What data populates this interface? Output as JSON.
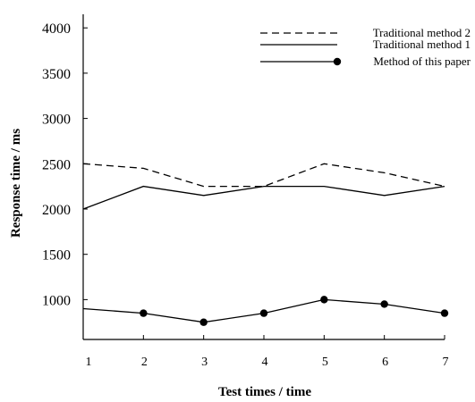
{
  "chart_data": {
    "type": "line",
    "xlabel": "Test times / time",
    "ylabel": "Response time / ms",
    "x": [
      1,
      2,
      3,
      4,
      5,
      6,
      7
    ],
    "y_ticks": [
      1000,
      1500,
      2000,
      2500,
      3000,
      3500,
      4000
    ],
    "x_ticks": [
      1,
      2,
      3,
      4,
      5,
      6,
      7
    ],
    "ylim": [
      560,
      4150
    ],
    "xlim": [
      1,
      7
    ],
    "grid": false,
    "legend_position": "top-right",
    "series": [
      {
        "name": "Traditional method 2",
        "style": "dashed",
        "marker": "none",
        "values": [
          2500,
          2450,
          2250,
          2250,
          2500,
          2400,
          2250
        ]
      },
      {
        "name": "Traditional method 1",
        "style": "solid",
        "marker": "none",
        "values": [
          2000,
          2250,
          2150,
          2250,
          2250,
          2150,
          2250
        ]
      },
      {
        "name": "Method of this paper",
        "style": "solid",
        "marker": "circle",
        "values": [
          900,
          850,
          750,
          850,
          1000,
          950,
          850
        ]
      }
    ],
    "colors": {
      "line": "#000000",
      "background": "#ffffff"
    }
  }
}
